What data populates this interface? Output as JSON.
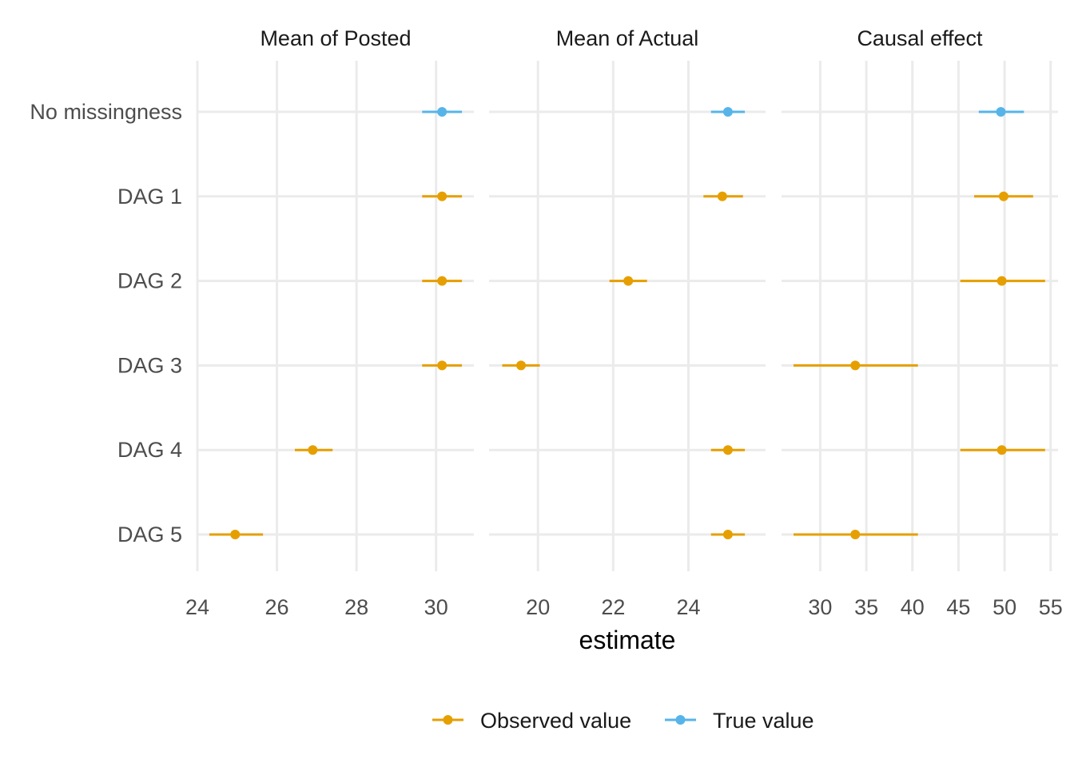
{
  "chart_data": {
    "type": "scatter",
    "subtype": "point-range",
    "xlabel": "estimate",
    "ylabel": "",
    "grid": true,
    "legend_position": "bottom",
    "rows": [
      "No missingness",
      "DAG 1",
      "DAG 2",
      "DAG 3",
      "DAG 4",
      "DAG 5"
    ],
    "colors": {
      "Observed value": "#E69F00",
      "True value": "#56B4E9",
      "grid": "#EBEBEB"
    },
    "legend": [
      {
        "label": "Observed value",
        "color": "#E69F00"
      },
      {
        "label": "True value",
        "color": "#56B4E9"
      }
    ],
    "panels": [
      {
        "title": "Mean of Posted",
        "xlim": [
          24,
          30.95
        ],
        "ticks": [
          24,
          26,
          28,
          30
        ],
        "points": [
          {
            "row": "No missingness",
            "series": "True value",
            "estimate": 30.15,
            "low": 29.65,
            "high": 30.65
          },
          {
            "row": "DAG 1",
            "series": "Observed value",
            "estimate": 30.15,
            "low": 29.65,
            "high": 30.65
          },
          {
            "row": "DAG 2",
            "series": "Observed value",
            "estimate": 30.15,
            "low": 29.65,
            "high": 30.65
          },
          {
            "row": "DAG 3",
            "series": "Observed value",
            "estimate": 30.15,
            "low": 29.65,
            "high": 30.65
          },
          {
            "row": "DAG 4",
            "series": "Observed value",
            "estimate": 26.9,
            "low": 26.45,
            "high": 27.4
          },
          {
            "row": "DAG 5",
            "series": "Observed value",
            "estimate": 24.95,
            "low": 24.3,
            "high": 25.65
          }
        ]
      },
      {
        "title": "Mean of Actual",
        "xlim": [
          18.7,
          26.05
        ],
        "ticks": [
          20,
          22,
          24
        ],
        "points": [
          {
            "row": "No missingness",
            "series": "True value",
            "estimate": 25.05,
            "low": 24.6,
            "high": 25.5
          },
          {
            "row": "DAG 1",
            "series": "Observed value",
            "estimate": 24.9,
            "low": 24.4,
            "high": 25.45
          },
          {
            "row": "DAG 2",
            "series": "Observed value",
            "estimate": 22.4,
            "low": 21.9,
            "high": 22.9
          },
          {
            "row": "DAG 3",
            "series": "Observed value",
            "estimate": 19.55,
            "low": 19.05,
            "high": 20.05
          },
          {
            "row": "DAG 4",
            "series": "Observed value",
            "estimate": 25.05,
            "low": 24.6,
            "high": 25.5
          },
          {
            "row": "DAG 5",
            "series": "Observed value",
            "estimate": 25.05,
            "low": 24.6,
            "high": 25.5
          }
        ]
      },
      {
        "title": "Causal effect",
        "xlim": [
          25.8,
          55.8
        ],
        "ticks": [
          30,
          35,
          40,
          45,
          50,
          55
        ],
        "points": [
          {
            "row": "No missingness",
            "series": "True value",
            "estimate": 49.6,
            "low": 47.2,
            "high": 52.1
          },
          {
            "row": "DAG 1",
            "series": "Observed value",
            "estimate": 49.9,
            "low": 46.7,
            "high": 53.1
          },
          {
            "row": "DAG 2",
            "series": "Observed value",
            "estimate": 49.7,
            "low": 45.2,
            "high": 54.4
          },
          {
            "row": "DAG 3",
            "series": "Observed value",
            "estimate": 33.8,
            "low": 27.1,
            "high": 40.6
          },
          {
            "row": "DAG 4",
            "series": "Observed value",
            "estimate": 49.7,
            "low": 45.2,
            "high": 54.4
          },
          {
            "row": "DAG 5",
            "series": "Observed value",
            "estimate": 33.8,
            "low": 27.1,
            "high": 40.6
          }
        ]
      }
    ]
  }
}
